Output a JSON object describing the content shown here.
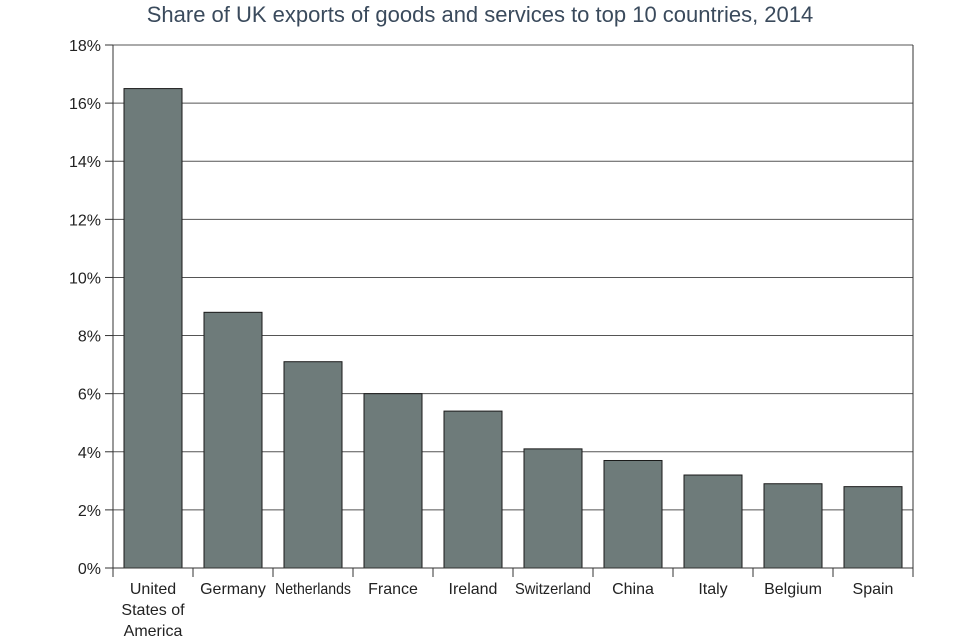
{
  "chart_data": {
    "type": "bar",
    "title": "Share of UK exports of goods and services to top 10 countries, 2014",
    "xlabel": "",
    "ylabel": "",
    "categories": [
      [
        "United",
        "States of",
        "America"
      ],
      [
        "Germany"
      ],
      [
        "Netherlands"
      ],
      [
        "France"
      ],
      [
        "Ireland"
      ],
      [
        "Switzerland"
      ],
      [
        "China"
      ],
      [
        "Italy"
      ],
      [
        "Belgium"
      ],
      [
        "Spain"
      ]
    ],
    "values": [
      16.5,
      8.8,
      7.1,
      6.0,
      5.4,
      4.1,
      3.7,
      3.2,
      2.9,
      2.8
    ],
    "ylim": [
      0,
      18
    ],
    "yticks": [
      "0%",
      "2%",
      "4%",
      "6%",
      "8%",
      "10%",
      "12%",
      "14%",
      "16%",
      "18%"
    ],
    "grid": true,
    "bar_color": "#6e7b7a"
  }
}
